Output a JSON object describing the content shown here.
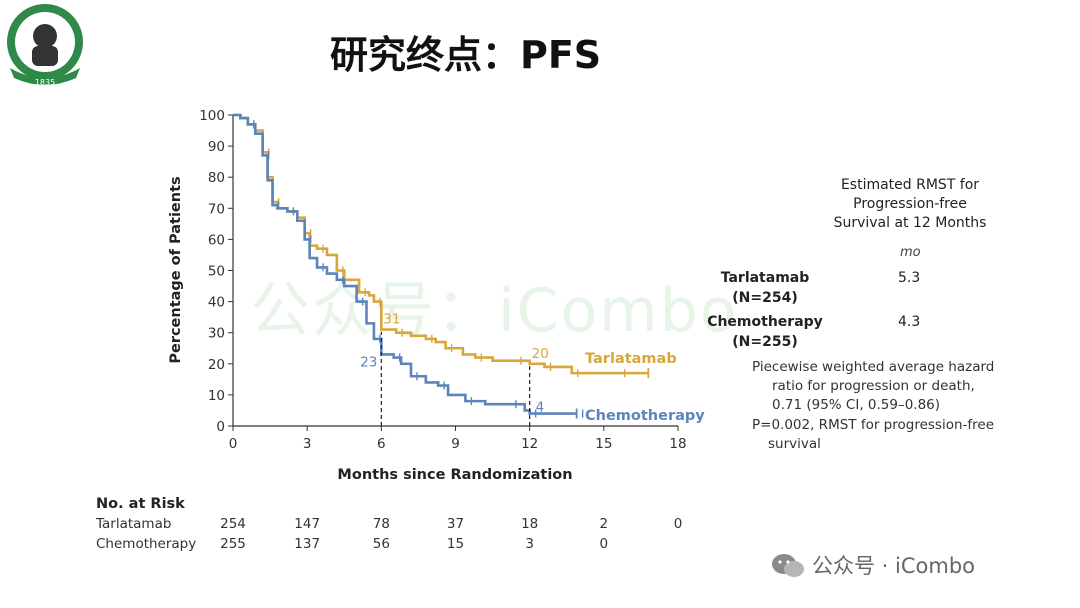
{
  "slide": {
    "title": "研究终点：PFS",
    "watermark": "公众号：iCombo",
    "footer_watermark": "公众号 · iCombo",
    "logo_year": "1835"
  },
  "colors": {
    "tarlatamab": "#D9A63A",
    "chemotherapy": "#5B84BB",
    "axis": "#333333"
  },
  "chart_data": {
    "type": "line",
    "subtype": "kaplan-meier",
    "xlabel": "Months since Randomization",
    "ylabel": "Percentage of Patients",
    "xlim": [
      0,
      18
    ],
    "ylim": [
      0,
      100
    ],
    "xticks": [
      0,
      3,
      6,
      9,
      12,
      15,
      18
    ],
    "yticks": [
      0,
      10,
      20,
      30,
      40,
      50,
      60,
      70,
      80,
      90,
      100
    ],
    "series": [
      {
        "name": "Tarlatamab",
        "color": "#D9A63A",
        "x": [
          0,
          0.3,
          0.6,
          0.9,
          1.2,
          1.4,
          1.6,
          1.8,
          2.2,
          2.6,
          2.9,
          3.1,
          3.4,
          3.8,
          4.2,
          4.5,
          5.1,
          5.5,
          5.7,
          6.0,
          6.6,
          7.2,
          7.8,
          8.2,
          8.6,
          9.3,
          9.8,
          10.5,
          11.4,
          12.0,
          12.6,
          13.2,
          13.7,
          14.6,
          15.6,
          16.8
        ],
        "y": [
          100,
          99,
          97,
          95,
          88,
          80,
          72,
          70,
          69,
          67,
          62,
          58,
          57,
          55,
          50,
          47,
          43,
          42,
          40,
          31,
          30,
          29,
          28,
          27,
          25,
          23,
          22,
          21,
          21,
          20,
          19,
          19,
          17,
          17,
          17,
          17
        ]
      },
      {
        "name": "Chemotherapy",
        "color": "#5B84BB",
        "x": [
          0,
          0.3,
          0.6,
          0.9,
          1.2,
          1.4,
          1.6,
          1.8,
          2.2,
          2.6,
          2.9,
          3.1,
          3.4,
          3.8,
          4.2,
          4.5,
          5.0,
          5.4,
          5.7,
          6.0,
          6.5,
          6.8,
          7.2,
          7.8,
          8.3,
          8.7,
          9.4,
          10.2,
          11.2,
          11.8,
          12.0,
          12.8,
          13.9
        ],
        "y": [
          100,
          99,
          97,
          94,
          87,
          79,
          71,
          70,
          69,
          66,
          60,
          54,
          51,
          49,
          47,
          45,
          40,
          33,
          28,
          23,
          22,
          20,
          16,
          14,
          13,
          10,
          8,
          7,
          7,
          5,
          4,
          4,
          4
        ]
      }
    ],
    "series_labels": [
      "Tarlatamab",
      "Chemotherapy"
    ],
    "annotations": [
      {
        "x": 6,
        "series": "Tarlatamab",
        "y": 31,
        "text": "31"
      },
      {
        "x": 6,
        "series": "Chemotherapy",
        "y": 23,
        "text": "23"
      },
      {
        "x": 12,
        "series": "Tarlatamab",
        "y": 20,
        "text": "20"
      },
      {
        "x": 12,
        "series": "Chemotherapy",
        "y": 4,
        "text": "4"
      }
    ],
    "reference_lines": [
      6,
      12
    ],
    "grid": false
  },
  "rmst": {
    "header_lines": [
      "Estimated RMST for",
      "Progression-free",
      "Survival at 12 Months"
    ],
    "unit": "mo",
    "rows": [
      {
        "name_line1": "Tarlatamab",
        "name_line2": "(N=254)",
        "value": "5.3"
      },
      {
        "name_line1": "Chemotherapy",
        "name_line2": "(N=255)",
        "value": "4.3"
      }
    ],
    "hr_line1": "Piecewise weighted average hazard",
    "hr_line2": "ratio for progression or death,",
    "hr_line3": "0.71 (95% CI, 0.59–0.86)",
    "p_line1": "P=0.002, RMST for progression-free",
    "p_line2": "survival"
  },
  "risk_table": {
    "title": "No. at Risk",
    "months": [
      0,
      3,
      6,
      9,
      12,
      15,
      18
    ],
    "rows": [
      {
        "label": "Tarlatamab",
        "values": [
          "254",
          "147",
          "78",
          "37",
          "18",
          "2",
          "0"
        ]
      },
      {
        "label": "Chemotherapy",
        "values": [
          "255",
          "137",
          "56",
          "15",
          "3",
          "0"
        ]
      }
    ]
  }
}
